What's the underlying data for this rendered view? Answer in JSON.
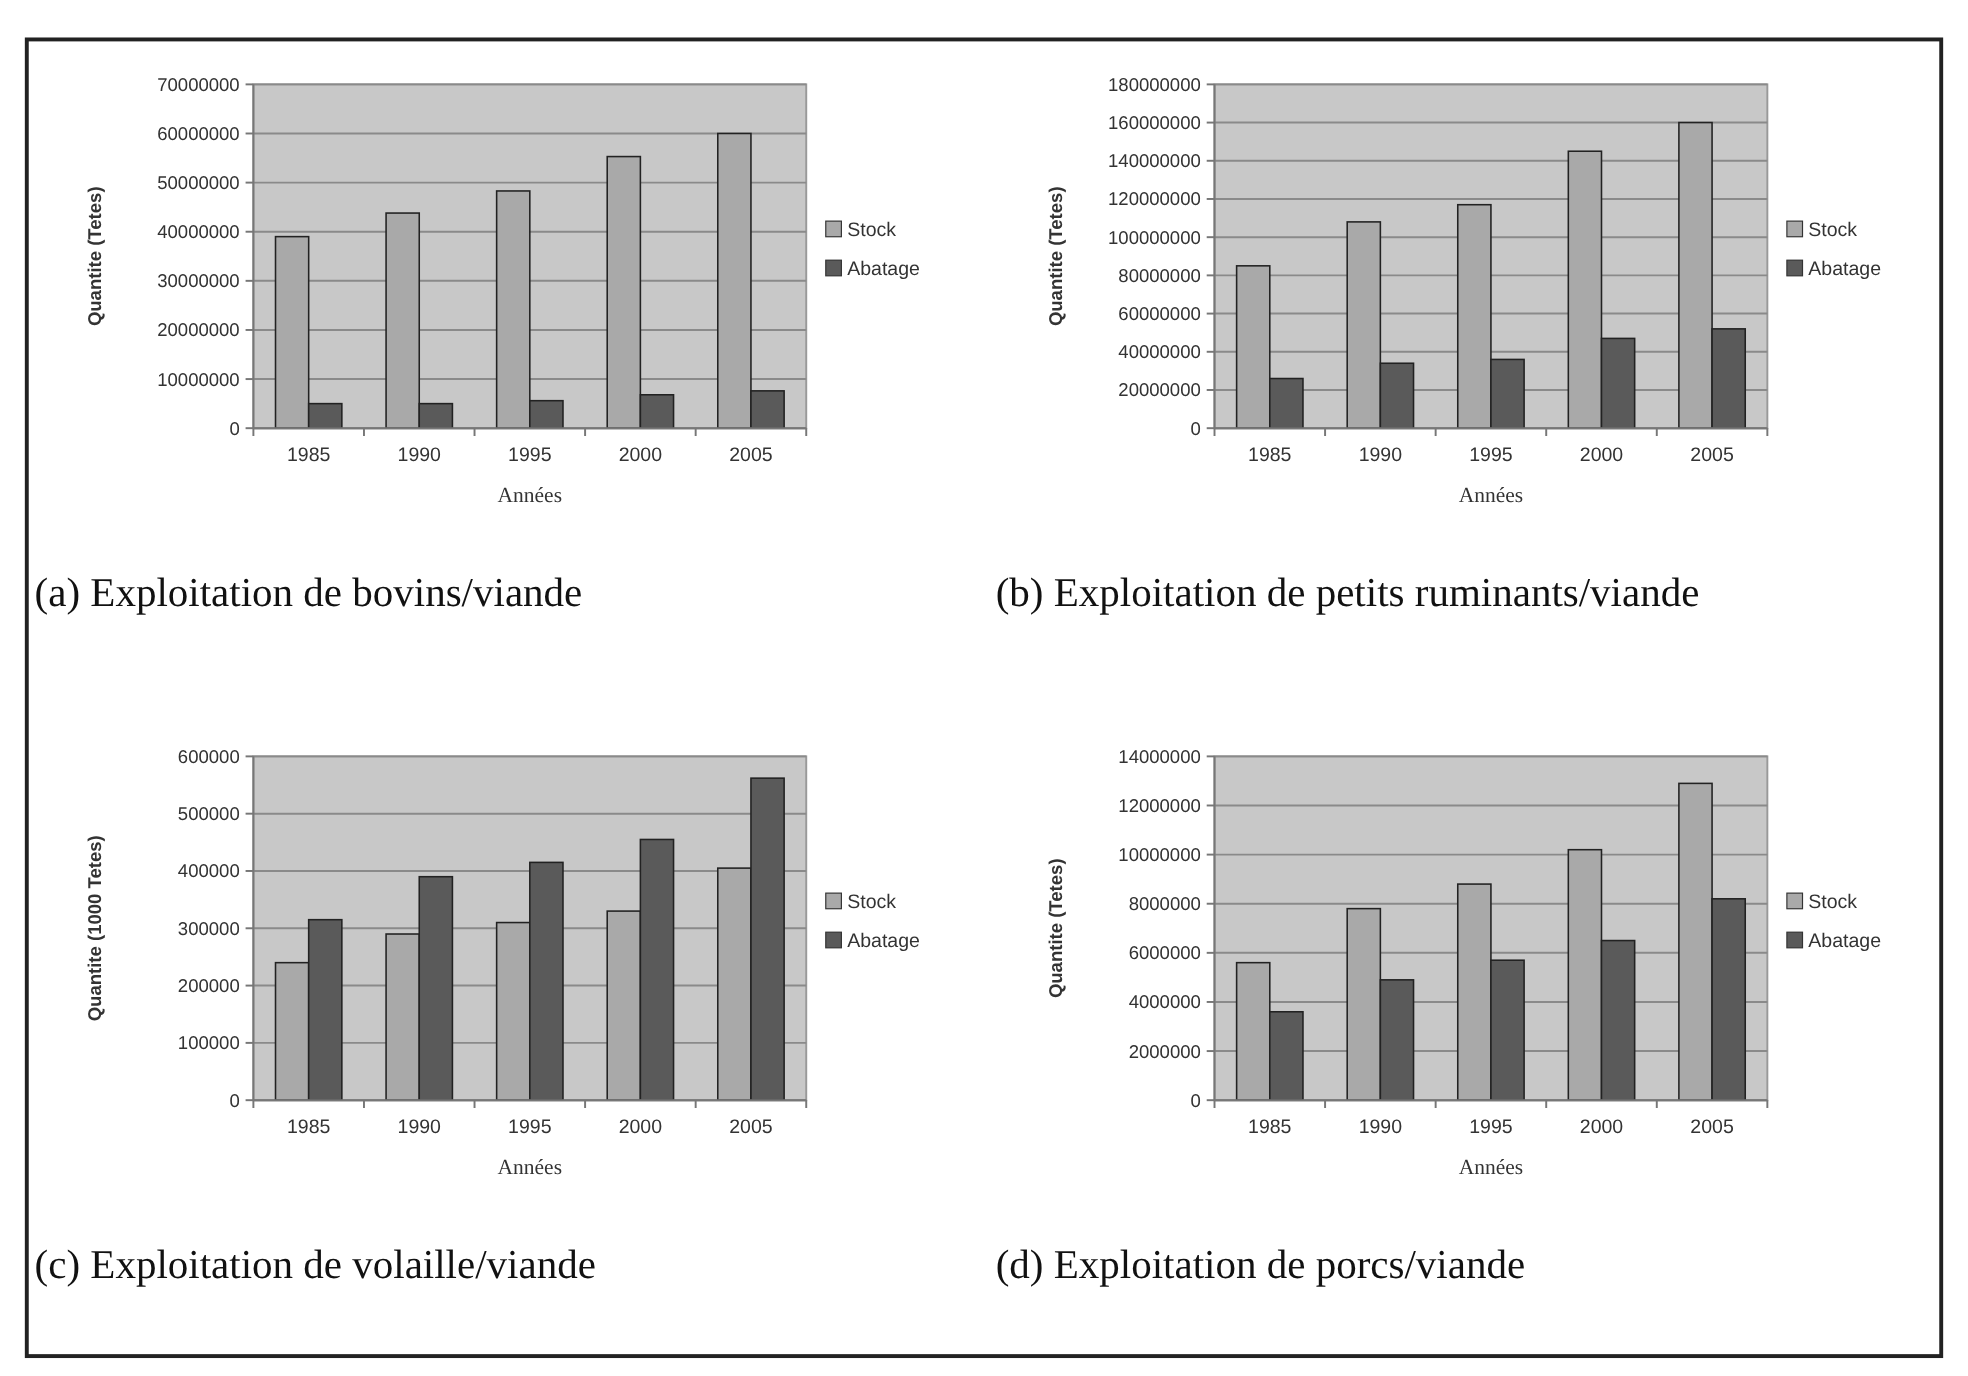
{
  "chart_data": [
    {
      "type": "bar",
      "title": "(a) Exploitation de bovins/viande",
      "xlabel": "Années",
      "ylabel": "Quantite (Tetes)",
      "categories": [
        "1985",
        "1990",
        "1995",
        "2000",
        "2005"
      ],
      "series": [
        {
          "name": "Stock",
          "color": "#a9a9a9",
          "values": [
            39000000,
            43800000,
            48300000,
            55300000,
            60000000
          ]
        },
        {
          "name": "Abatage",
          "color": "#5a5a5a",
          "values": [
            5000000,
            5000000,
            5600000,
            6800000,
            7600000
          ]
        }
      ],
      "ylim": [
        0,
        70000000
      ],
      "yticks": [
        0,
        10000000,
        20000000,
        30000000,
        40000000,
        50000000,
        60000000,
        70000000
      ],
      "grid": "y",
      "legend": "right"
    },
    {
      "type": "bar",
      "title": "(b) Exploitation de petits ruminants/viande",
      "xlabel": "Années",
      "ylabel": "Quantite (Tetes)",
      "categories": [
        "1985",
        "1990",
        "1995",
        "2000",
        "2005"
      ],
      "series": [
        {
          "name": "Stock",
          "color": "#a9a9a9",
          "values": [
            85000000,
            108000000,
            117000000,
            145000000,
            160000000
          ]
        },
        {
          "name": "Abatage",
          "color": "#5a5a5a",
          "values": [
            26000000,
            34000000,
            36000000,
            47000000,
            52000000
          ]
        }
      ],
      "ylim": [
        0,
        180000000
      ],
      "yticks": [
        0,
        20000000,
        40000000,
        60000000,
        80000000,
        100000000,
        120000000,
        140000000,
        160000000,
        180000000
      ],
      "grid": "y",
      "legend": "right"
    },
    {
      "type": "bar",
      "title": "(c) Exploitation de volaille/viande",
      "xlabel": "Années",
      "ylabel": "Quantite (1000 Tetes)",
      "categories": [
        "1985",
        "1990",
        "1995",
        "2000",
        "2005"
      ],
      "series": [
        {
          "name": "Stock",
          "color": "#a9a9a9",
          "values": [
            240000,
            290000,
            310000,
            330000,
            405000
          ]
        },
        {
          "name": "Abatage",
          "color": "#5a5a5a",
          "values": [
            315000,
            390000,
            415000,
            455000,
            562000
          ]
        }
      ],
      "ylim": [
        0,
        600000
      ],
      "yticks": [
        0,
        100000,
        200000,
        300000,
        400000,
        500000,
        600000
      ],
      "grid": "y",
      "legend": "right"
    },
    {
      "type": "bar",
      "title": "(d) Exploitation de porcs/viande",
      "xlabel": "Années",
      "ylabel": "Quantite (Tetes)",
      "categories": [
        "1985",
        "1990",
        "1995",
        "2000",
        "2005"
      ],
      "series": [
        {
          "name": "Stock",
          "color": "#a9a9a9",
          "values": [
            5600000,
            7800000,
            8800000,
            10200000,
            12900000
          ]
        },
        {
          "name": "Abatage",
          "color": "#5a5a5a",
          "values": [
            3600000,
            4900000,
            5700000,
            6500000,
            8200000
          ]
        }
      ],
      "ylim": [
        0,
        14000000
      ],
      "yticks": [
        0,
        2000000,
        4000000,
        6000000,
        8000000,
        10000000,
        12000000,
        14000000
      ],
      "grid": "y",
      "legend": "right"
    }
  ]
}
